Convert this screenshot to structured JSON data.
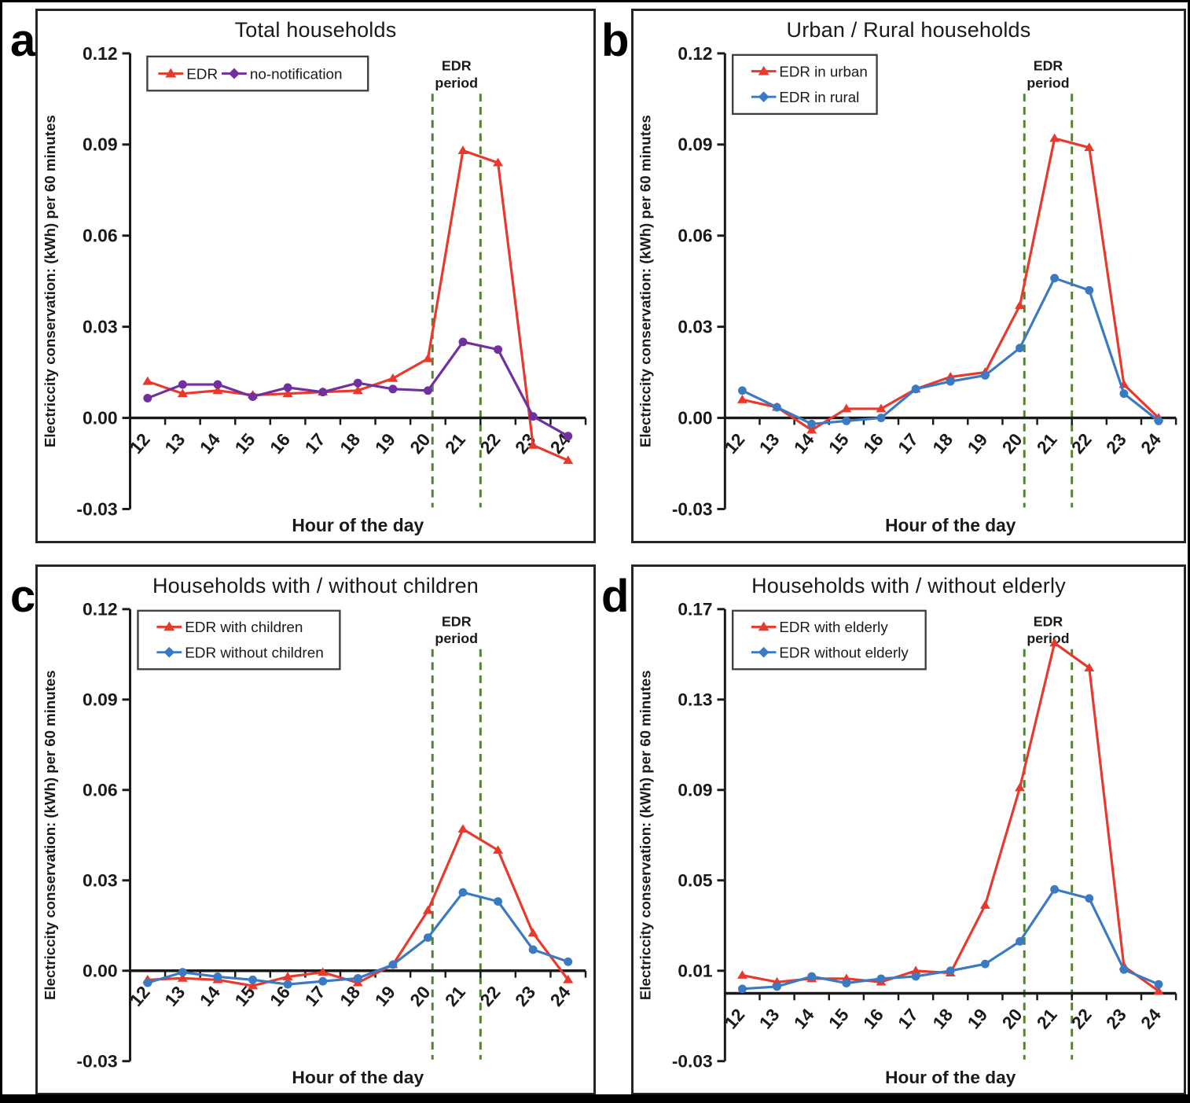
{
  "figure": {
    "y_axis_title": "Electriccity conservation: (kWh) per 60 minutes",
    "x_axis_title": "Hour of the day",
    "edr_annotation_lines": [
      "EDR",
      "period"
    ],
    "colors": {
      "red_series": "#e8392c",
      "purple_series": "#7030a0",
      "blue_series": "#3b7ac2",
      "edr_dashed_line": "#548235",
      "axis": "#1a1a1a",
      "legend_border": "#404040"
    }
  },
  "chart_data": [
    {
      "type": "line",
      "panel_letter": "a",
      "title": "Total households",
      "categories": [
        "12",
        "13",
        "14",
        "15",
        "16",
        "17",
        "18",
        "19",
        "20",
        "21",
        "22",
        "23",
        "24"
      ],
      "series": [
        {
          "name": "EDR",
          "color": "#e8392c",
          "marker": "triangle",
          "values": [
            0.012,
            0.008,
            0.009,
            0.0075,
            0.008,
            0.0085,
            0.009,
            0.013,
            0.0195,
            0.088,
            0.084,
            -0.009,
            -0.014
          ]
        },
        {
          "name": "no-notification",
          "color": "#7030a0",
          "marker": "circle",
          "values": [
            0.0065,
            0.011,
            0.011,
            0.007,
            0.01,
            0.0085,
            0.0115,
            0.0095,
            0.009,
            0.025,
            0.0225,
            0.0005,
            -0.006
          ]
        }
      ],
      "ylim": [
        -0.03,
        0.12
      ],
      "yticks": [
        "0.12",
        "0.09",
        "0.06",
        "0.03",
        "0.00",
        "-0.03"
      ],
      "edr_period_hours": [
        20.13,
        21.5
      ],
      "legend_layout": "horizontal",
      "xlabel": "Hour of the day",
      "ylabel": "Electriccity conservation: (kWh) per 60 minutes",
      "grid": false
    },
    {
      "type": "line",
      "panel_letter": "b",
      "title": "Urban / Rural households",
      "categories": [
        "12",
        "13",
        "14",
        "15",
        "16",
        "17",
        "18",
        "19",
        "20",
        "21",
        "22",
        "23",
        "24"
      ],
      "series": [
        {
          "name": "EDR in urban",
          "color": "#e8392c",
          "marker": "triangle",
          "values": [
            0.006,
            0.0035,
            -0.004,
            0.003,
            0.003,
            0.0095,
            0.0135,
            0.015,
            0.037,
            0.092,
            0.089,
            0.011,
            0.0
          ]
        },
        {
          "name": "EDR in rural",
          "color": "#3b7ac2",
          "marker": "circle",
          "values": [
            0.009,
            0.0035,
            -0.002,
            -0.001,
            0.0,
            0.0095,
            0.012,
            0.014,
            0.023,
            0.046,
            0.042,
            0.008,
            -0.001
          ]
        }
      ],
      "ylim": [
        -0.03,
        0.12
      ],
      "yticks": [
        "0.12",
        "0.09",
        "0.06",
        "0.03",
        "0.00",
        "-0.03"
      ],
      "edr_period_hours": [
        20.13,
        21.5
      ],
      "legend_layout": "vertical",
      "xlabel": "Hour of the day",
      "ylabel": "Electriccity conservation: (kWh) per 60 minutes",
      "grid": false
    },
    {
      "type": "line",
      "panel_letter": "c",
      "title": "Households with / without children",
      "categories": [
        "12",
        "13",
        "14",
        "15",
        "16",
        "17",
        "18",
        "19",
        "20",
        "21",
        "22",
        "23",
        "24"
      ],
      "series": [
        {
          "name": "EDR with children",
          "color": "#e8392c",
          "marker": "triangle",
          "values": [
            -0.003,
            -0.0025,
            -0.003,
            -0.005,
            -0.002,
            -0.0005,
            -0.004,
            0.002,
            0.02,
            0.047,
            0.04,
            0.0125,
            -0.003
          ]
        },
        {
          "name": "EDR without children",
          "color": "#3b7ac2",
          "marker": "circle",
          "values": [
            -0.004,
            -0.0005,
            -0.002,
            -0.003,
            -0.0045,
            -0.0035,
            -0.0025,
            0.002,
            0.011,
            0.026,
            0.023,
            0.007,
            0.003
          ]
        }
      ],
      "ylim": [
        -0.03,
        0.12
      ],
      "yticks": [
        "0.12",
        "0.09",
        "0.06",
        "0.03",
        "0.00",
        "-0.03"
      ],
      "edr_period_hours": [
        20.13,
        21.5
      ],
      "legend_layout": "vertical",
      "xlabel": "Hour of the day",
      "ylabel": "Electriccity conservation: (kWh) per 60 minutes",
      "grid": false
    },
    {
      "type": "line",
      "panel_letter": "d",
      "title": "Households with / without elderly",
      "categories": [
        "12",
        "13",
        "14",
        "15",
        "16",
        "17",
        "18",
        "19",
        "20",
        "21",
        "22",
        "23",
        "24"
      ],
      "series": [
        {
          "name": "EDR with elderly",
          "color": "#e8392c",
          "marker": "triangle",
          "values": [
            0.008,
            0.005,
            0.0065,
            0.0065,
            0.005,
            0.01,
            0.009,
            0.039,
            0.091,
            0.155,
            0.144,
            0.012,
            0.001
          ]
        },
        {
          "name": "EDR without elderly",
          "color": "#3b7ac2",
          "marker": "circle",
          "values": [
            0.002,
            0.003,
            0.0075,
            0.0045,
            0.0065,
            0.0075,
            0.01,
            0.013,
            0.023,
            0.046,
            0.042,
            0.0105,
            0.004
          ]
        }
      ],
      "ylim": [
        -0.03,
        0.17
      ],
      "yticks": [
        "0.17",
        "0.13",
        "0.09",
        "0.05",
        "0.01",
        "-0.03"
      ],
      "edr_period_hours": [
        20.13,
        21.5
      ],
      "legend_layout": "vertical",
      "xlabel": "Hour of the day",
      "ylabel": "Electriccity conservation: (kWh) per 60 minutes",
      "grid": false
    }
  ]
}
